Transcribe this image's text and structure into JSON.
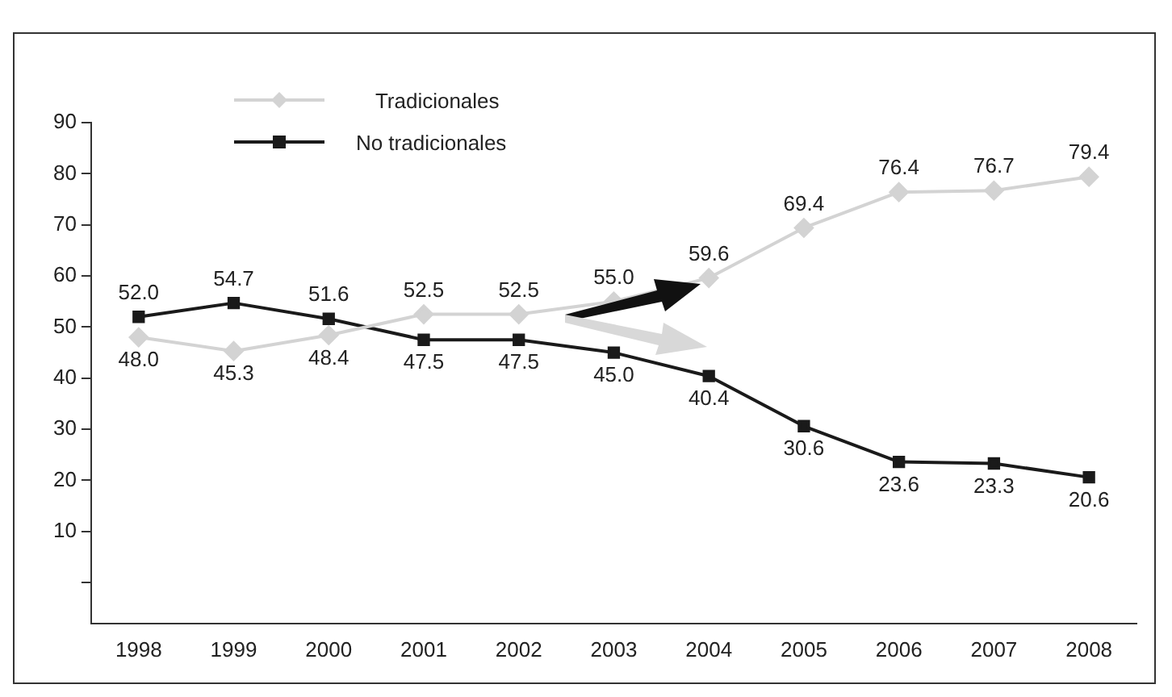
{
  "chart_data": {
    "type": "line",
    "categories": [
      "1998",
      "1999",
      "2000",
      "2001",
      "2002",
      "2003",
      "2004",
      "2005",
      "2006",
      "2007",
      "2008"
    ],
    "series": [
      {
        "name": "Tradicionales",
        "color": "#d3d3d3",
        "marker": "diamond",
        "values": [
          48.0,
          45.3,
          48.4,
          52.5,
          52.5,
          55.0,
          59.6,
          69.4,
          76.4,
          76.7,
          79.4
        ],
        "value_labels": [
          "48.0",
          "45.3",
          "48.4",
          "52.5",
          "52.5",
          "55.0",
          "59.6",
          "69.4",
          "76.4",
          "76.7",
          "79.4"
        ]
      },
      {
        "name": "No tradicionales",
        "color": "#1a1a1a",
        "marker": "square",
        "values": [
          52.0,
          54.7,
          51.6,
          47.5,
          47.5,
          45.0,
          40.4,
          30.6,
          23.6,
          23.3,
          20.6
        ],
        "value_labels": [
          "52.0",
          "54.7",
          "51.6",
          "47.5",
          "47.5",
          "45.0",
          "40.4",
          "30.6",
          "23.6",
          "23.3",
          "20.6"
        ]
      }
    ],
    "ylim": [
      -8,
      90
    ],
    "yticks": [
      {
        "value": 0,
        "label": null
      },
      10,
      20,
      30,
      40,
      50,
      60,
      70,
      80,
      90
    ],
    "grid": false,
    "legend": "top left",
    "line_style": "solid"
  }
}
